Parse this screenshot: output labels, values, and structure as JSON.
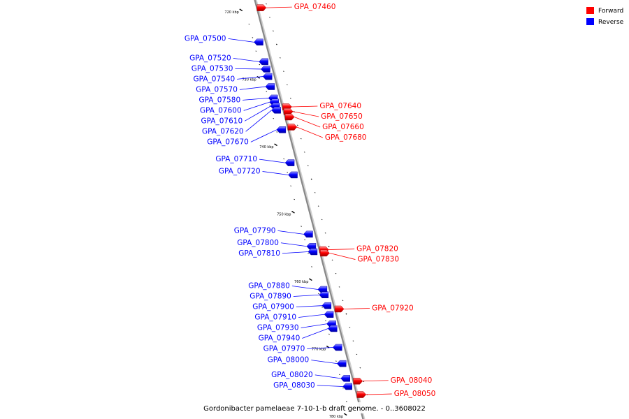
{
  "caption": "Gordonibacter pamelaeae 7-10-1-b draft genome. - 0..3608022",
  "legend": [
    {
      "label": "Forward",
      "color": "#ff0000"
    },
    {
      "label": "Reverse",
      "color": "#0000ff"
    }
  ],
  "colors": {
    "forward": "#ff0000",
    "reverse": "#0000ff",
    "backbone": "#888888"
  },
  "ticks": [
    {
      "kbp": 720,
      "label": "720 kbp"
    },
    {
      "kbp": 730,
      "label": "730 kbp"
    },
    {
      "kbp": 740,
      "label": "740 kbp"
    },
    {
      "kbp": 750,
      "label": "750 kbp"
    },
    {
      "kbp": 760,
      "label": "760 kbp"
    },
    {
      "kbp": 770,
      "label": "770 kbp"
    },
    {
      "kbp": 780,
      "label": "780 kbp"
    }
  ],
  "genes": [
    {
      "id": "GPA_07460",
      "strand": "forward",
      "kbp": 719.6
    },
    {
      "id": "GPA_07500",
      "strand": "reverse",
      "kbp": 724.7
    },
    {
      "id": "GPA_07520",
      "strand": "reverse",
      "kbp": 727.6
    },
    {
      "id": "GPA_07530",
      "strand": "reverse",
      "kbp": 728.7
    },
    {
      "id": "GPA_07540",
      "strand": "reverse",
      "kbp": 729.8
    },
    {
      "id": "GPA_07570",
      "strand": "reverse",
      "kbp": 731.3
    },
    {
      "id": "GPA_07580",
      "strand": "reverse",
      "kbp": 733.0
    },
    {
      "id": "GPA_07600",
      "strand": "reverse",
      "kbp": 733.6
    },
    {
      "id": "GPA_07610",
      "strand": "reverse",
      "kbp": 734.2
    },
    {
      "id": "GPA_07620",
      "strand": "reverse",
      "kbp": 734.8
    },
    {
      "id": "GPA_07640",
      "strand": "forward",
      "kbp": 734.3
    },
    {
      "id": "GPA_07650",
      "strand": "forward",
      "kbp": 735.0
    },
    {
      "id": "GPA_07660",
      "strand": "forward",
      "kbp": 735.8
    },
    {
      "id": "GPA_07680",
      "strand": "forward",
      "kbp": 737.3
    },
    {
      "id": "GPA_07670",
      "strand": "reverse",
      "kbp": 737.7
    },
    {
      "id": "GPA_07710",
      "strand": "reverse",
      "kbp": 742.6
    },
    {
      "id": "GPA_07720",
      "strand": "reverse",
      "kbp": 744.4
    },
    {
      "id": "GPA_07790",
      "strand": "reverse",
      "kbp": 753.2
    },
    {
      "id": "GPA_07800",
      "strand": "reverse",
      "kbp": 755.0
    },
    {
      "id": "GPA_07810",
      "strand": "reverse",
      "kbp": 755.8
    },
    {
      "id": "GPA_07820",
      "strand": "forward",
      "kbp": 755.5
    },
    {
      "id": "GPA_07830",
      "strand": "forward",
      "kbp": 756.0
    },
    {
      "id": "GPA_07880",
      "strand": "reverse",
      "kbp": 761.4
    },
    {
      "id": "GPA_07890",
      "strand": "reverse",
      "kbp": 762.2
    },
    {
      "id": "GPA_07900",
      "strand": "reverse",
      "kbp": 763.8
    },
    {
      "id": "GPA_07910",
      "strand": "reverse",
      "kbp": 765.1
    },
    {
      "id": "GPA_07920",
      "strand": "forward",
      "kbp": 764.3
    },
    {
      "id": "GPA_07930",
      "strand": "reverse",
      "kbp": 766.5
    },
    {
      "id": "GPA_07940",
      "strand": "reverse",
      "kbp": 767.2
    },
    {
      "id": "GPA_07970",
      "strand": "reverse",
      "kbp": 770.0
    },
    {
      "id": "GPA_08000",
      "strand": "reverse",
      "kbp": 772.4
    },
    {
      "id": "GPA_08020",
      "strand": "reverse",
      "kbp": 774.6
    },
    {
      "id": "GPA_08030",
      "strand": "reverse",
      "kbp": 775.8
    },
    {
      "id": "GPA_08040",
      "strand": "forward",
      "kbp": 775.0
    },
    {
      "id": "GPA_08050",
      "strand": "forward",
      "kbp": 777.0
    }
  ]
}
